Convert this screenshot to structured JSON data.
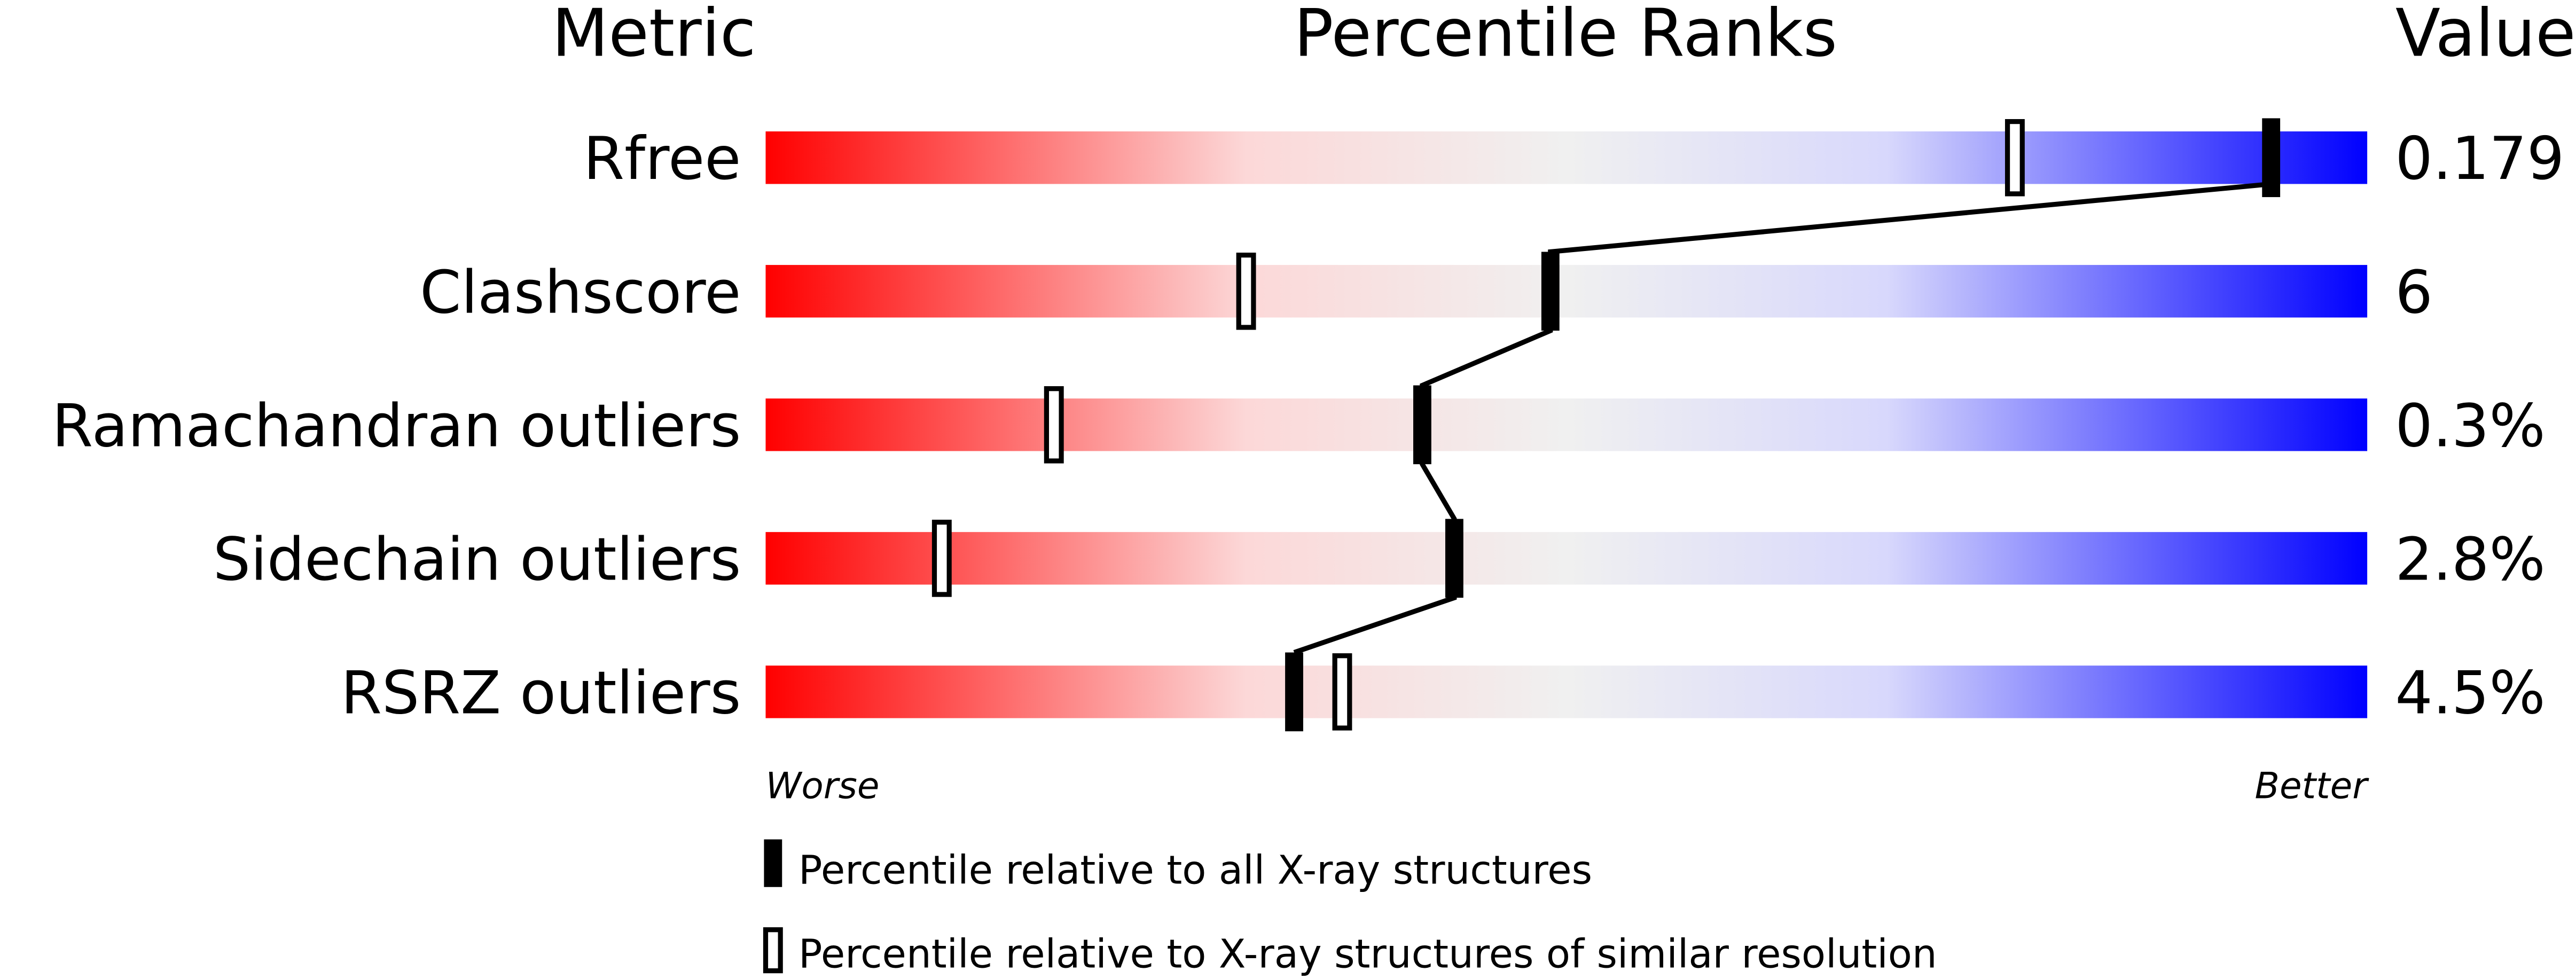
{
  "chart_data": {
    "type": "bar",
    "headers": {
      "metric": "Metric",
      "percentile": "Percentile Ranks",
      "value": "Value"
    },
    "xlim": [
      0,
      100
    ],
    "metrics": [
      {
        "name": "Rfree",
        "value": "0.179",
        "percentile_all": 94,
        "percentile_similar": 78
      },
      {
        "name": "Clashscore",
        "value": "6",
        "percentile_all": 49,
        "percentile_similar": 30
      },
      {
        "name": "Ramachandran outliers",
        "value": "0.3%",
        "percentile_all": 41,
        "percentile_similar": 18
      },
      {
        "name": "Sidechain outliers",
        "value": "2.8%",
        "percentile_all": 43,
        "percentile_similar": 11
      },
      {
        "name": "RSRZ outliers",
        "value": "4.5%",
        "percentile_all": 33,
        "percentile_similar": 36
      }
    ],
    "axis_labels": {
      "left": "Worse",
      "right": "Better"
    },
    "legend": {
      "filled": "Percentile relative to all X-ray structures",
      "open": "Percentile relative to X-ray structures of similar resolution"
    },
    "colors": {
      "worse": "#ff0000",
      "middle": "#f0f0f0",
      "better": "#0000ff",
      "marker": "#000000"
    }
  }
}
